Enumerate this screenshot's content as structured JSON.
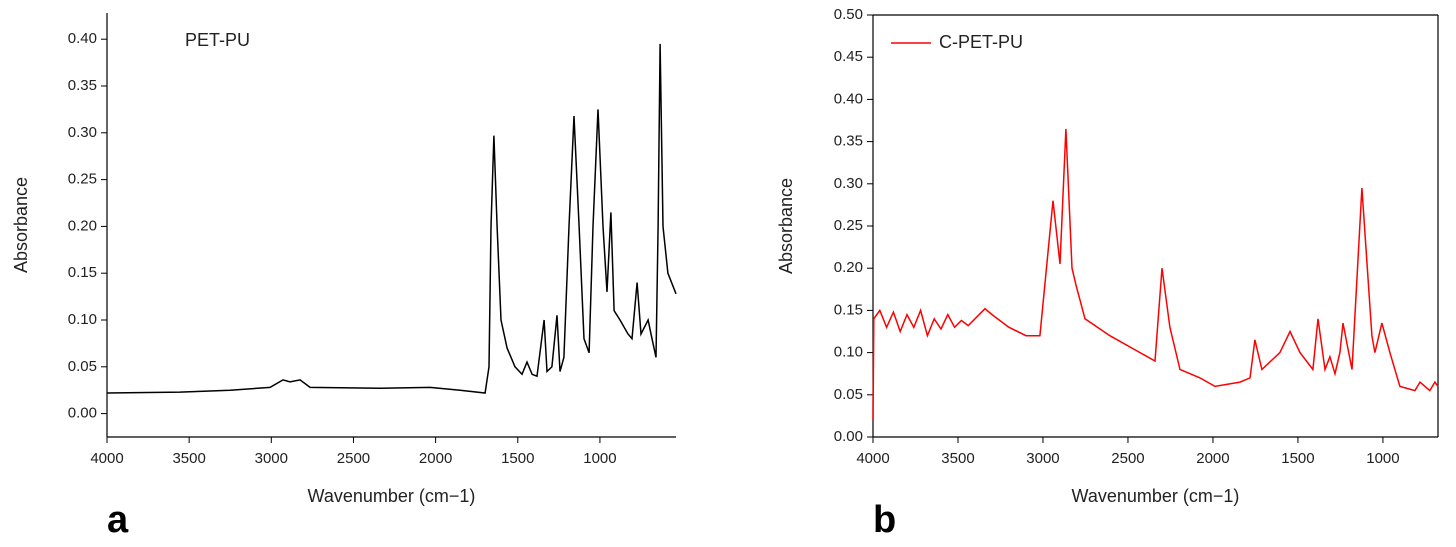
{
  "chart_data": [
    {
      "type": "line",
      "panel_label": "a",
      "x_label": "Wavenumber (cm−1)",
      "y_label": "Absorbance",
      "legend_swatch": false,
      "frame": "open",
      "xlim": [
        4000,
        537
      ],
      "ylim": [
        -0.025,
        0.428
      ],
      "xticks": [
        4000,
        3500,
        3000,
        2500,
        2000,
        1500,
        1000
      ],
      "yticks": [
        {
          "value": 0,
          "label": "0.00"
        },
        {
          "value": 0.05,
          "label": "0.05"
        },
        {
          "value": 0.1,
          "label": "0.10"
        },
        {
          "value": 0.15,
          "label": "0.15"
        },
        {
          "value": 0.2,
          "label": "0.20"
        },
        {
          "value": 0.25,
          "label": "0.25"
        },
        {
          "value": 0.3,
          "label": "0.30"
        },
        {
          "value": 0.35,
          "label": "0.35"
        },
        {
          "value": 0.4,
          "label": "0.40"
        }
      ],
      "x": [
        4000,
        3556,
        3251,
        3008,
        2929,
        2886,
        2825,
        2764,
        2338,
        2034,
        1851,
        1699,
        1675,
        1663,
        1645,
        1626,
        1602,
        1565,
        1517,
        1474,
        1444,
        1413,
        1383,
        1340,
        1322,
        1292,
        1261,
        1243,
        1219,
        1188,
        1158,
        1127,
        1097,
        1066,
        1042,
        1012,
        981,
        957,
        933,
        914,
        878,
        829,
        805,
        774,
        750,
        707,
        683,
        659,
        646,
        634,
        616,
        586,
        537
      ],
      "series": [
        {
          "name": "PET-PU",
          "color": "#000000",
          "values": [
            0.022,
            0.023,
            0.025,
            0.028,
            0.036,
            0.034,
            0.036,
            0.028,
            0.027,
            0.028,
            0.025,
            0.022,
            0.05,
            0.2,
            0.297,
            0.2,
            0.1,
            0.07,
            0.05,
            0.042,
            0.055,
            0.042,
            0.04,
            0.1,
            0.045,
            0.05,
            0.105,
            0.045,
            0.06,
            0.2,
            0.318,
            0.2,
            0.08,
            0.065,
            0.2,
            0.325,
            0.2,
            0.13,
            0.215,
            0.11,
            0.1,
            0.085,
            0.08,
            0.14,
            0.085,
            0.1,
            0.08,
            0.06,
            0.2,
            0.395,
            0.2,
            0.15,
            0.128
          ]
        }
      ]
    },
    {
      "type": "line",
      "panel_label": "b",
      "x_label": "Wavenumber (cm−1)",
      "y_label": "Absorbance",
      "legend_swatch": true,
      "frame": "box",
      "xlim": [
        4000,
        676
      ],
      "ylim": [
        0,
        0.5
      ],
      "xticks": [
        4000,
        3500,
        3000,
        2500,
        2000,
        1500,
        1000
      ],
      "yticks": [
        {
          "value": 0,
          "label": "0.00"
        },
        {
          "value": 0.05,
          "label": "0.05"
        },
        {
          "value": 0.1,
          "label": "0.10"
        },
        {
          "value": 0.15,
          "label": "0.15"
        },
        {
          "value": 0.2,
          "label": "0.20"
        },
        {
          "value": 0.25,
          "label": "0.25"
        },
        {
          "value": 0.3,
          "label": "0.30"
        },
        {
          "value": 0.35,
          "label": "0.35"
        },
        {
          "value": 0.4,
          "label": "0.40"
        },
        {
          "value": 0.45,
          "label": "0.45"
        },
        {
          "value": 0.5,
          "label": "0.50"
        }
      ],
      "x": [
        4000,
        3995,
        3960,
        3920,
        3880,
        3840,
        3800,
        3760,
        3720,
        3680,
        3640,
        3600,
        3560,
        3520,
        3480,
        3440,
        3400,
        3341,
        3300,
        3200,
        3100,
        3018,
        2941,
        2900,
        2865,
        2829,
        2806,
        2753,
        2606,
        2429,
        2341,
        2300,
        2253,
        2194,
        2076,
        1988,
        1841,
        1782,
        1753,
        1712,
        1606,
        1547,
        1488,
        1412,
        1382,
        1341,
        1312,
        1282,
        1253,
        1235,
        1182,
        1124,
        1065,
        1047,
        1006,
        959,
        900,
        812,
        782,
        724,
        694,
        676
      ],
      "series": [
        {
          "name": "C-PET-PU",
          "color": "#ff0000",
          "values": [
            0.02,
            0.14,
            0.15,
            0.13,
            0.148,
            0.125,
            0.145,
            0.13,
            0.15,
            0.12,
            0.14,
            0.128,
            0.145,
            0.13,
            0.138,
            0.132,
            0.14,
            0.152,
            0.145,
            0.13,
            0.12,
            0.12,
            0.28,
            0.205,
            0.365,
            0.2,
            0.18,
            0.14,
            0.12,
            0.1,
            0.09,
            0.2,
            0.13,
            0.08,
            0.07,
            0.06,
            0.065,
            0.07,
            0.115,
            0.08,
            0.1,
            0.125,
            0.1,
            0.08,
            0.14,
            0.08,
            0.095,
            0.075,
            0.1,
            0.135,
            0.08,
            0.295,
            0.12,
            0.1,
            0.135,
            0.1,
            0.06,
            0.055,
            0.065,
            0.055,
            0.065,
            0.06
          ]
        }
      ]
    }
  ]
}
